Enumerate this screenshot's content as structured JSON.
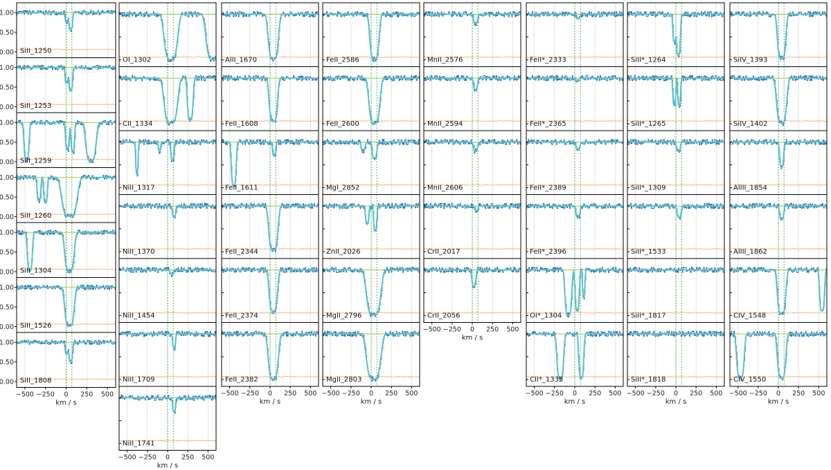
{
  "chart_data": {
    "type": "line",
    "xlabel": "km / s",
    "xlim": [
      -600,
      600
    ],
    "ylim": [
      -0.15,
      1.25
    ],
    "xticks": [
      -500,
      -250,
      0,
      250,
      500
    ],
    "xtick_labels": [
      "−500",
      "−250",
      "0",
      "250",
      "500"
    ],
    "yticks": [
      0.0,
      0.5,
      1.0
    ],
    "ytick_labels": [
      "0.00",
      "0.50",
      "1.00"
    ],
    "colors": {
      "data": "#3a78b0",
      "model": "#5ec3c8",
      "error": "#f5b47c",
      "continuum": "#9acd32",
      "components": "#2ca02c",
      "grid": "#d3d3d3"
    },
    "columns": [
      {
        "panels": [
          {
            "label": "SiII_1250",
            "lines": [
              {
                "c": 55,
                "d": 0.45,
                "w": 22
              },
              {
                "c": 5,
                "d": 0.25,
                "w": 18
              }
            ]
          },
          {
            "label": "SiII_1253",
            "lines": [
              {
                "c": 55,
                "d": 0.6,
                "w": 22
              },
              {
                "c": 5,
                "d": 0.4,
                "w": 18
              }
            ]
          },
          {
            "label": "SiII_1259",
            "lines": [
              {
                "c": -480,
                "d": 0.95,
                "w": 30
              },
              {
                "c": 15,
                "d": 0.7,
                "w": 22
              },
              {
                "c": 80,
                "d": 0.75,
                "w": 22
              },
              {
                "c": 300,
                "d": 0.98,
                "w": 60
              }
            ]
          },
          {
            "label": "SiII_1260",
            "lines": [
              {
                "c": -330,
                "d": 0.6,
                "w": 22
              },
              {
                "c": -250,
                "d": 0.65,
                "w": 22
              },
              {
                "c": 40,
                "d": 0.99,
                "w": 90
              }
            ]
          },
          {
            "label": "SiII_1304",
            "lines": [
              {
                "c": -440,
                "d": 0.97,
                "w": 30
              },
              {
                "c": 40,
                "d": 0.99,
                "w": 55
              }
            ]
          },
          {
            "label": "SiII_1526",
            "lines": [
              {
                "c": 40,
                "d": 0.99,
                "w": 55
              }
            ]
          },
          {
            "label": "SiII_1808",
            "lines": [
              {
                "c": 55,
                "d": 0.5,
                "w": 22
              },
              {
                "c": 5,
                "d": 0.3,
                "w": 18
              }
            ]
          }
        ],
        "xaxis": true
      },
      {
        "panels": [
          {
            "label": "OI_1302",
            "lines": [
              {
                "c": 40,
                "d": 0.99,
                "w": 80
              },
              {
                "c": 560,
                "d": 0.99,
                "w": 80
              }
            ]
          },
          {
            "label": "CII_1334",
            "lines": [
              {
                "c": 40,
                "d": 0.99,
                "w": 80
              },
              {
                "c": 280,
                "d": 0.92,
                "w": 35
              }
            ]
          },
          {
            "label": "NiII_1317",
            "lines": [
              {
                "c": -380,
                "d": 0.7,
                "w": 15
              },
              {
                "c": 60,
                "d": 0.4,
                "w": 20
              },
              {
                "c": -100,
                "d": 0.2,
                "w": 15
              }
            ]
          },
          {
            "label": "NiII_1370",
            "lines": [
              {
                "c": 80,
                "d": 0.25,
                "w": 20
              }
            ]
          },
          {
            "label": "NiII_1454",
            "lines": [
              {
                "c": 50,
                "d": 0.1,
                "w": 20
              }
            ]
          },
          {
            "label": "NiII_1709",
            "lines": [
              {
                "c": 80,
                "d": 0.3,
                "w": 18
              }
            ]
          },
          {
            "label": "NiII_1741",
            "lines": [
              {
                "c": 80,
                "d": 0.3,
                "w": 18
              }
            ]
          }
        ],
        "xaxis": true
      },
      {
        "panels": [
          {
            "label": "AlII_1670",
            "lines": [
              {
                "c": 40,
                "d": 0.99,
                "w": 60
              }
            ]
          },
          {
            "label": "FeII_1608",
            "lines": [
              {
                "c": 40,
                "d": 0.95,
                "w": 50
              }
            ]
          },
          {
            "label": "FeII_1611",
            "lines": [
              {
                "c": -450,
                "d": 0.95,
                "w": 30
              },
              {
                "c": 50,
                "d": 0.3,
                "w": 20
              }
            ]
          },
          {
            "label": "FeII_2344",
            "lines": [
              {
                "c": 40,
                "d": 0.97,
                "w": 55
              }
            ]
          },
          {
            "label": "FeII_2374",
            "lines": [
              {
                "c": 40,
                "d": 0.9,
                "w": 50
              }
            ]
          },
          {
            "label": "FeII_2382",
            "lines": [
              {
                "c": 40,
                "d": 0.99,
                "w": 60
              }
            ]
          }
        ],
        "xaxis": true
      },
      {
        "panels": [
          {
            "label": "FeII_2586",
            "lines": [
              {
                "c": 40,
                "d": 0.99,
                "w": 55
              }
            ]
          },
          {
            "label": "FeII_2600",
            "lines": [
              {
                "c": 40,
                "d": 0.99,
                "w": 65
              }
            ]
          },
          {
            "label": "MgI_2852",
            "lines": [
              {
                "c": 40,
                "d": 0.35,
                "w": 30
              },
              {
                "c": -100,
                "d": 0.2,
                "w": 25
              }
            ]
          },
          {
            "label": "ZnII_2026",
            "lines": [
              {
                "c": -50,
                "d": 0.4,
                "w": 20
              },
              {
                "c": 50,
                "d": 0.55,
                "w": 20
              }
            ]
          },
          {
            "label": "MgII_2796",
            "lines": [
              {
                "c": 30,
                "d": 0.99,
                "w": 85
              }
            ]
          },
          {
            "label": "MgII_2803",
            "lines": [
              {
                "c": 30,
                "d": 0.99,
                "w": 85
              }
            ]
          }
        ],
        "xaxis": true
      },
      {
        "panels": [
          {
            "label": "MnII_2576",
            "lines": [
              {
                "c": 40,
                "d": 0.2,
                "w": 25
              }
            ]
          },
          {
            "label": "MnII_2594",
            "lines": [
              {
                "c": 40,
                "d": 0.25,
                "w": 25
              }
            ]
          },
          {
            "label": "MnII_2606",
            "lines": [
              {
                "c": 40,
                "d": 0.2,
                "w": 25
              }
            ]
          },
          {
            "label": "CrII_2017",
            "lines": [
              {
                "c": 50,
                "d": 0.1,
                "w": 20
              }
            ]
          },
          {
            "label": "CrII_2056",
            "lines": [
              {
                "c": 20,
                "d": 0.35,
                "w": 25
              }
            ]
          }
        ],
        "xaxis": true
      },
      {
        "panels": [
          {
            "label": "FeII*_2333",
            "lines": [
              {
                "c": 40,
                "d": 0.1,
                "w": 25
              }
            ]
          },
          {
            "label": "FeII*_2365",
            "lines": [
              {
                "c": 40,
                "d": 0.05,
                "w": 25
              }
            ]
          },
          {
            "label": "FeII*_2389",
            "lines": [
              {
                "c": 40,
                "d": 0.15,
                "w": 25
              }
            ]
          },
          {
            "label": "FeII*_2396",
            "lines": [
              {
                "c": 40,
                "d": 0.25,
                "w": 25
              }
            ]
          },
          {
            "label": "OI*_1304",
            "lines": [
              {
                "c": -80,
                "d": 0.99,
                "w": 40
              },
              {
                "c": 30,
                "d": 0.9,
                "w": 25
              },
              {
                "c": 110,
                "d": 0.6,
                "w": 15
              }
            ]
          },
          {
            "label": "CII*_1335",
            "lines": [
              {
                "c": -180,
                "d": 0.99,
                "w": 40
              },
              {
                "c": 80,
                "d": 0.97,
                "w": 30
              }
            ]
          }
        ],
        "xaxis": true
      },
      {
        "panels": [
          {
            "label": "SiII*_1264",
            "lines": [
              {
                "c": 30,
                "d": 0.9,
                "w": 25
              },
              {
                "c": -20,
                "d": 0.6,
                "w": 18
              }
            ]
          },
          {
            "label": "SiII*_1265",
            "lines": [
              {
                "c": -20,
                "d": 0.6,
                "w": 18
              },
              {
                "c": 40,
                "d": 0.6,
                "w": 18
              }
            ]
          },
          {
            "label": "SiII*_1309",
            "lines": [
              {
                "c": 30,
                "d": 0.2,
                "w": 25
              }
            ]
          },
          {
            "label": "SiII*_1533",
            "lines": [
              {
                "c": 40,
                "d": 0.25,
                "w": 25
              }
            ]
          },
          {
            "label": "SiII*_1817",
            "lines": []
          },
          {
            "label": "SiII*_1818",
            "lines": []
          }
        ],
        "xaxis": true
      },
      {
        "panels": [
          {
            "label": "SiIV_1393",
            "lines": [
              {
                "c": 40,
                "d": 0.97,
                "w": 50
              }
            ]
          },
          {
            "label": "SiIV_1402",
            "lines": [
              {
                "c": 40,
                "d": 0.99,
                "w": 60
              }
            ]
          },
          {
            "label": "AlIII_1854",
            "lines": [
              {
                "c": 40,
                "d": 0.55,
                "w": 25
              }
            ]
          },
          {
            "label": "AlIII_1862",
            "lines": [
              {
                "c": 40,
                "d": 0.3,
                "w": 25
              }
            ]
          },
          {
            "label": "CIV_1548",
            "lines": [
              {
                "c": 40,
                "d": 0.97,
                "w": 50
              },
              {
                "c": 540,
                "d": 0.9,
                "w": 30
              }
            ]
          },
          {
            "label": "CIV_1550",
            "lines": [
              {
                "c": -470,
                "d": 0.97,
                "w": 45
              },
              {
                "c": 40,
                "d": 0.97,
                "w": 50
              }
            ]
          }
        ],
        "xaxis": true
      }
    ],
    "components_kms": [
      0,
      70
    ]
  }
}
